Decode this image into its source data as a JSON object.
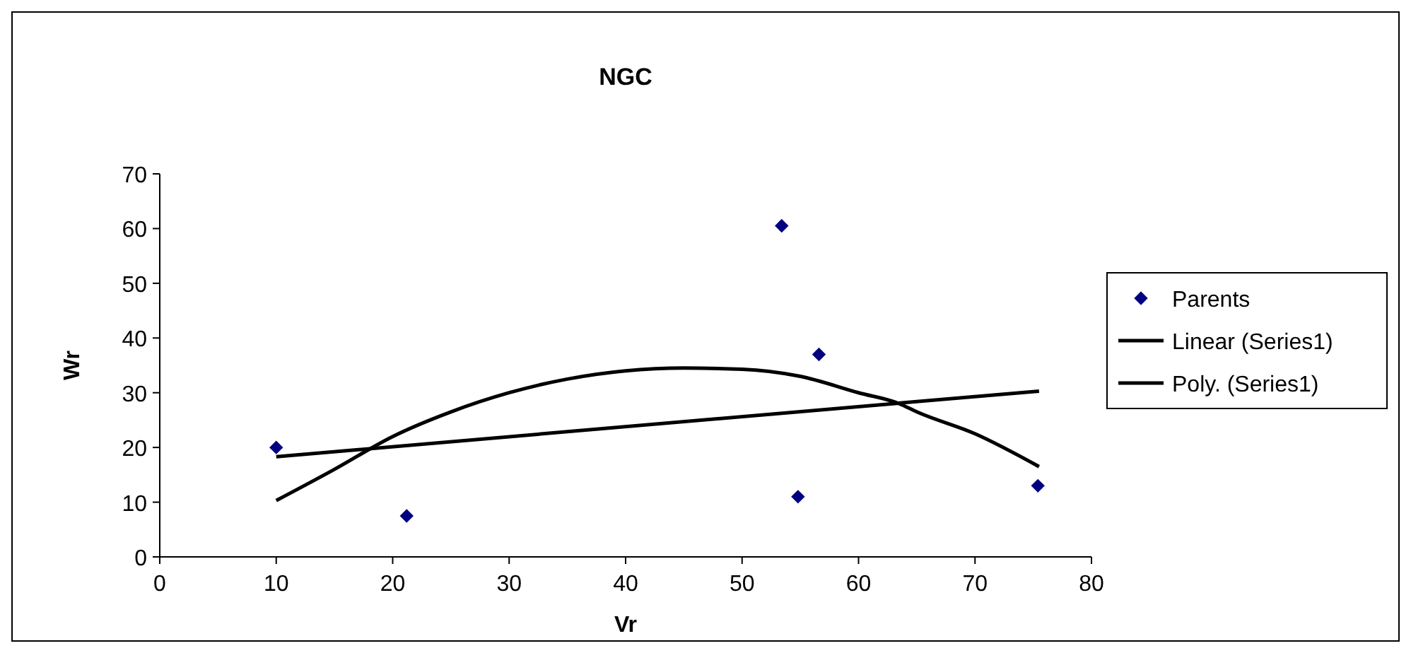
{
  "chart_data": {
    "type": "scatter",
    "title": "NGC",
    "xlabel": "Vr",
    "ylabel": "Wr",
    "xlim": [
      0,
      80
    ],
    "xticks": [
      0,
      10,
      20,
      30,
      40,
      50,
      60,
      70,
      80
    ],
    "ylim": [
      0,
      70
    ],
    "yticks": [
      0,
      10,
      20,
      30,
      40,
      50,
      60,
      70
    ],
    "grid": false,
    "legend": "right",
    "series": [
      {
        "name": "Parents",
        "marker": "diamond",
        "color": "#000080",
        "x": [
          10,
          21.2,
          53.4,
          54.8,
          56.6,
          75.4
        ],
        "values": [
          20,
          7.5,
          60.5,
          11,
          37,
          13
        ]
      },
      {
        "name": "Linear (Series1)",
        "type": "line",
        "marker": "none",
        "line_style": "solid",
        "color": "#000000",
        "x": [
          10,
          75.5
        ],
        "values": [
          18.3,
          30.3
        ]
      },
      {
        "name": "Poly. (Series1)",
        "type": "line",
        "marker": "none",
        "line_style": "solid",
        "color": "#000000",
        "x": [
          10,
          15,
          20,
          25,
          30,
          35,
          40,
          45,
          50,
          55,
          60,
          63.5,
          65,
          70,
          75.5
        ],
        "values": [
          10.3,
          16,
          22,
          26.5,
          30,
          32.5,
          34,
          34.5,
          34.3,
          33,
          30,
          28,
          26.5,
          22.5,
          16.5
        ]
      }
    ]
  }
}
